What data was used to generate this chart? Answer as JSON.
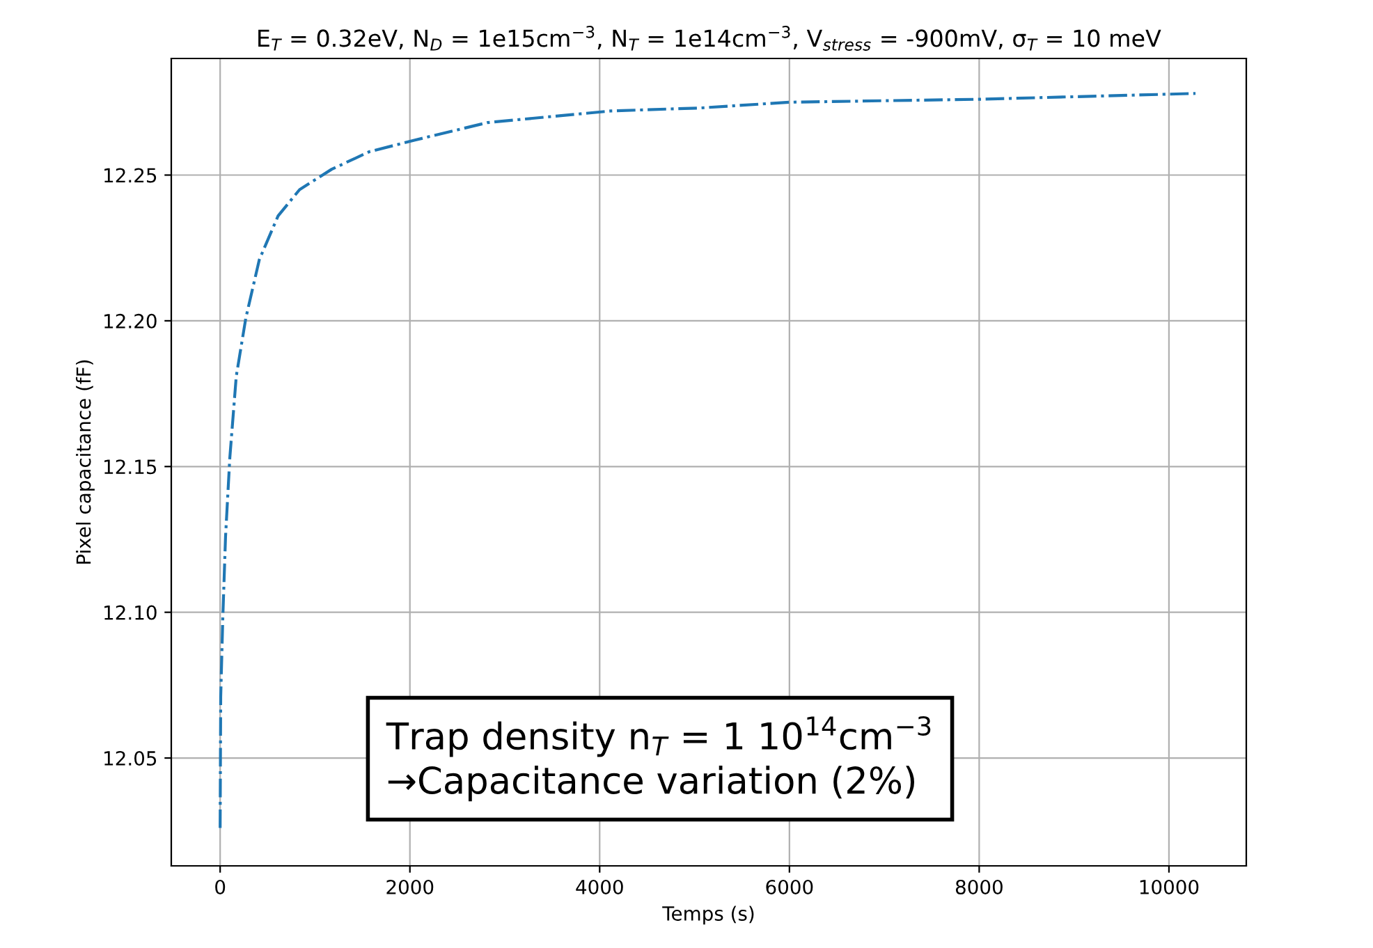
{
  "chart_data": {
    "type": "line",
    "title": "E$_{T}$ = 0.32eV, N$_{D}$ = 1e15cm$^{−3}$, N$_{T}$ = 1e14cm$^{−3}$, V$_{stress}$ = -900mV, σ$_{T}$ = 10 meV",
    "xlabel": "Temps (s)",
    "ylabel": "Pixel capacitance (fF)",
    "series": [
      {
        "color": "#1f77b4",
        "line_style": "dashdot",
        "x": [
          0,
          6,
          28,
          57,
          102,
          170,
          271,
          413,
          611,
          837,
          1176,
          1572,
          2053,
          2817,
          4117,
          5051,
          6000,
          8000,
          10280
        ],
        "values": [
          12.026,
          12.071,
          12.098,
          12.126,
          12.153,
          12.181,
          12.201,
          12.221,
          12.236,
          12.245,
          12.252,
          12.258,
          12.262,
          12.268,
          12.272,
          12.273,
          12.275,
          12.276,
          12.278
        ]
      }
    ],
    "xlim": [
      -515,
      10815
    ],
    "ylim": [
      12.013,
      12.29
    ],
    "xticks": [
      0,
      2000,
      4000,
      6000,
      8000,
      10000
    ],
    "yticks": [
      {
        "value": 12.05,
        "label": "12.05"
      },
      {
        "value": 12.1,
        "label": "12.10"
      },
      {
        "value": 12.15,
        "label": "12.15"
      },
      {
        "value": 12.2,
        "label": "12.20"
      },
      {
        "value": 12.25,
        "label": "12.25"
      }
    ],
    "grid": true,
    "annotations": [
      "Trap density n$_{T}$ = 1 10$^{14}$cm$^{−3}$\n→Capacitance variation (2%)"
    ]
  }
}
